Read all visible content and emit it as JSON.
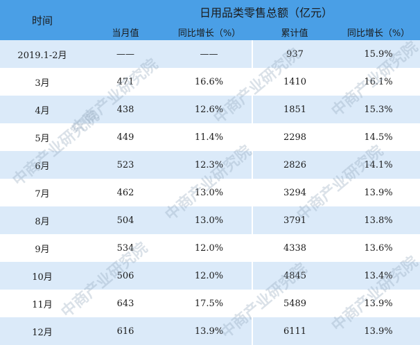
{
  "header": {
    "time_label": "时间",
    "group_title": "日用品类零售总额（亿元）",
    "columns": [
      "当月值",
      "同比增长（%）",
      "累计值",
      "同比增长（%）"
    ]
  },
  "rows": [
    {
      "period": "2019.1-2月",
      "monthly": "——",
      "monthly_yoy": "——",
      "cumulative": "937",
      "cumulative_yoy": "15.9%"
    },
    {
      "period": "3月",
      "monthly": "471",
      "monthly_yoy": "16.6%",
      "cumulative": "1410",
      "cumulative_yoy": "16.1%"
    },
    {
      "period": "4月",
      "monthly": "438",
      "monthly_yoy": "12.6%",
      "cumulative": "1851",
      "cumulative_yoy": "15.3%"
    },
    {
      "period": "5月",
      "monthly": "449",
      "monthly_yoy": "11.4%",
      "cumulative": "2298",
      "cumulative_yoy": "14.5%"
    },
    {
      "period": "6月",
      "monthly": "523",
      "monthly_yoy": "12.3%",
      "cumulative": "2826",
      "cumulative_yoy": "14.1%"
    },
    {
      "period": "7月",
      "monthly": "462",
      "monthly_yoy": "13.0%",
      "cumulative": "3294",
      "cumulative_yoy": "13.9%"
    },
    {
      "period": "8月",
      "monthly": "504",
      "monthly_yoy": "13.0%",
      "cumulative": "3791",
      "cumulative_yoy": "13.8%"
    },
    {
      "period": "9月",
      "monthly": "534",
      "monthly_yoy": "12.0%",
      "cumulative": "4338",
      "cumulative_yoy": "13.6%"
    },
    {
      "period": "10月",
      "monthly": "506",
      "monthly_yoy": "12.0%",
      "cumulative": "4845",
      "cumulative_yoy": "13.4%"
    },
    {
      "period": "11月",
      "monthly": "643",
      "monthly_yoy": "17.5%",
      "cumulative": "5489",
      "cumulative_yoy": "13.9%"
    },
    {
      "period": "12月",
      "monthly": "616",
      "monthly_yoy": "13.9%",
      "cumulative": "6111",
      "cumulative_yoy": "13.9%"
    }
  ],
  "watermark": "中商产业研究院",
  "colors": {
    "header_bg": "#4a9fe6",
    "row_alt_bg": "#dbeaf9",
    "row_bg": "#ffffff"
  }
}
